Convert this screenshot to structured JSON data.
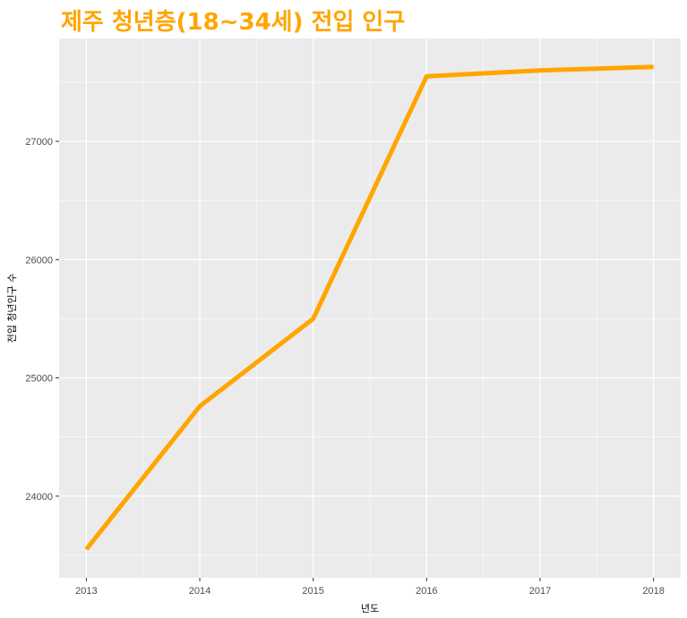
{
  "chart_data": {
    "type": "line",
    "title": "제주 청년층(18~34세) 전입 인구",
    "xlabel": "년도",
    "ylabel": "전입 청년인구 수",
    "x": [
      2013,
      2014,
      2015,
      2016,
      2017,
      2018
    ],
    "x_tick_labels": [
      "2013",
      "2014",
      "2015",
      "2016",
      "2017",
      "2018"
    ],
    "y_ticks": [
      24000,
      25000,
      26000,
      27000
    ],
    "y_tick_labels": [
      "24000",
      "25000",
      "26000",
      "27000"
    ],
    "series": [
      {
        "values": [
          23550,
          24760,
          25500,
          27550,
          27600,
          27630
        ]
      }
    ],
    "xlim": [
      2012.76,
      2018.24
    ],
    "ylim": [
      23310,
      27870
    ],
    "grid": true,
    "legend": "none",
    "colors": {
      "line": "#FFA500",
      "panel": "#EBEBEB",
      "grid": "#FFFFFF",
      "title": "#FFA500"
    }
  }
}
